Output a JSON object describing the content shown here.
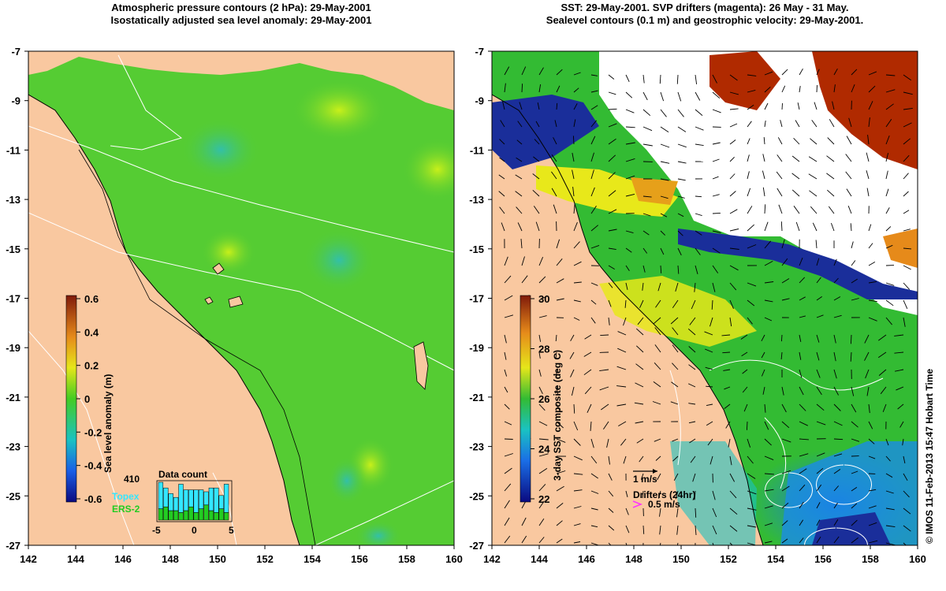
{
  "panels": {
    "left": {
      "title_line1": "Atmospheric pressure contours (2 hPa): 29-May-2001",
      "title_line2": "Isostatically adjusted sea level anomaly: 29-May-2001",
      "colorbar_label": "Sea level anomaly (m)",
      "colorbar_ticks": [
        "0.6",
        "0.4",
        "0.2",
        "0",
        "-0.2",
        "-0.4",
        "-0.6"
      ],
      "data_count": {
        "title": "Data count",
        "total": "410",
        "series": [
          "Topex",
          "ERS-2"
        ],
        "axis_ticks": [
          "-5",
          "0",
          "5"
        ],
        "series_colors": [
          "#33e6ff",
          "#22cc22"
        ]
      }
    },
    "right": {
      "title_line1": "SST: 29-May-2001. SVP drifters (magenta): 26 May - 31 May.",
      "title_line2": "Sealevel contours (0.1 m) and geostrophic velocity: 29-May-2001.",
      "colorbar_label": "3-day SST composite (deg C)",
      "colorbar_ticks": [
        "30",
        "28",
        "26",
        "24",
        "22"
      ],
      "legend": {
        "velocity_scale": "1 m/s",
        "drifters_label": "Drifters (24hr)",
        "drifter_scale": "0.5 m/s"
      }
    }
  },
  "axes": {
    "x_ticks": [
      "142",
      "144",
      "146",
      "148",
      "150",
      "152",
      "154",
      "156",
      "158",
      "160"
    ],
    "y_ticks": [
      "-7",
      "-9",
      "-11",
      "-13",
      "-15",
      "-17",
      "-19",
      "-21",
      "-23",
      "-25",
      "-27"
    ]
  },
  "credit": "© IMOS 11-Feb-2013 15:47 Hobart Time",
  "colors": {
    "land": "#f9c8a0",
    "sea_level_green": "#55cc33",
    "sst_green": "#33bb33",
    "sst_yellow": "#e8e81a",
    "sst_blue": "#1a8ce6",
    "sst_red": "#b02a00"
  }
}
